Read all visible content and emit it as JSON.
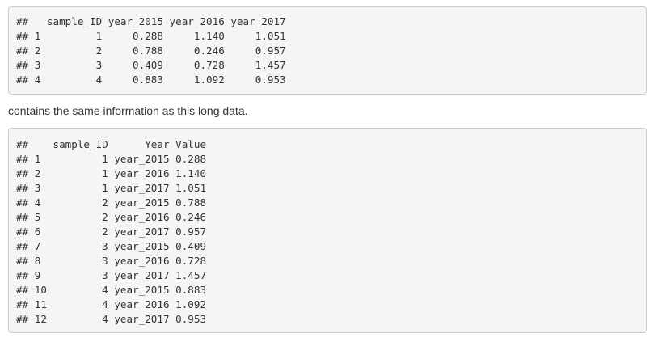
{
  "wide_output": {
    "lines": [
      "##   sample_ID year_2015 year_2016 year_2017",
      "## 1         1     0.288     1.140     1.051",
      "## 2         2     0.788     0.246     0.957",
      "## 3         3     0.409     0.728     1.457",
      "## 4         4     0.883     1.092     0.953"
    ]
  },
  "prose_text": "contains the same information as this long data.",
  "long_output": {
    "lines": [
      "##    sample_ID      Year Value",
      "## 1          1 year_2015 0.288",
      "## 2          1 year_2016 1.140",
      "## 3          1 year_2017 1.051",
      "## 4          2 year_2015 0.788",
      "## 5          2 year_2016 0.246",
      "## 6          2 year_2017 0.957",
      "## 7          3 year_2015 0.409",
      "## 8          3 year_2016 0.728",
      "## 9          3 year_2017 1.457",
      "## 10         4 year_2015 0.883",
      "## 11         4 year_2016 1.092",
      "## 12         4 year_2017 0.953"
    ]
  }
}
